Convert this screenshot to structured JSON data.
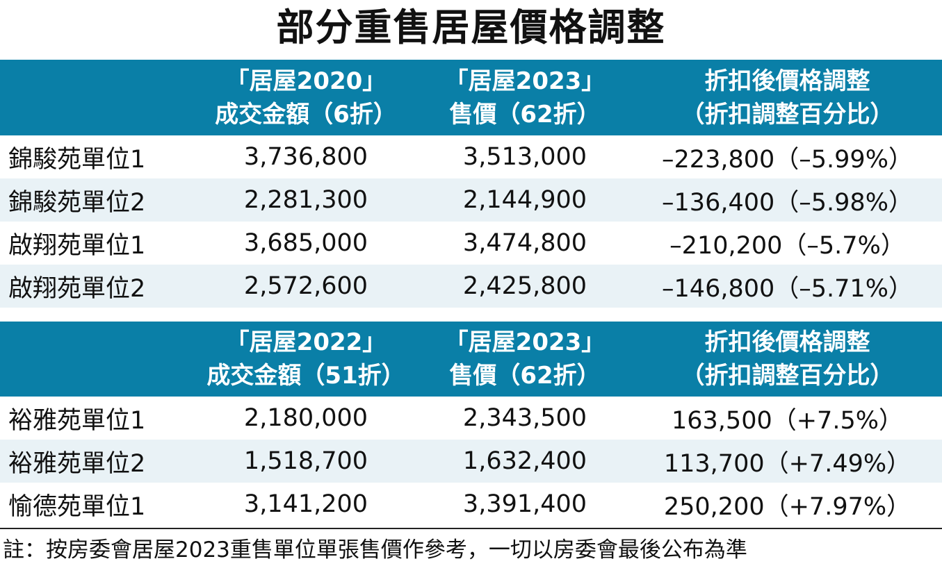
{
  "title": "部分重售居屋價格調整",
  "table1": {
    "headers": [
      {
        "line1": "",
        "line2": ""
      },
      {
        "line1": "「居屋2020」",
        "line2": "成交金額（6折）"
      },
      {
        "line1": "「居屋2023」",
        "line2": "售價（62折）"
      },
      {
        "line1": "折扣後價格調整",
        "line2": "（折扣調整百分比）"
      }
    ],
    "rows": [
      {
        "name": "錦駿苑單位1",
        "before": "3,736,800",
        "price": "3,513,000",
        "change": "–223,800（–5.99%）"
      },
      {
        "name": "錦駿苑單位2",
        "before": "2,281,300",
        "price": "2,144,900",
        "change": "–136,400（–5.98%）"
      },
      {
        "name": "啟翔苑單位1",
        "before": "3,685,000",
        "price": "3,474,800",
        "change": "–210,200（–5.7%）"
      },
      {
        "name": "啟翔苑單位2",
        "before": "2,572,600",
        "price": "2,425,800",
        "change": "–146,800（–5.71%）"
      }
    ]
  },
  "table2": {
    "headers": [
      {
        "line1": "",
        "line2": ""
      },
      {
        "line1": "「居屋2022」",
        "line2": "成交金額（51折）"
      },
      {
        "line1": "「居屋2023」",
        "line2": "售價（62折）"
      },
      {
        "line1": "折扣後價格調整",
        "line2": "（折扣調整百分比）"
      }
    ],
    "rows": [
      {
        "name": "裕雅苑單位1",
        "before": "2,180,000",
        "price": "2,343,500",
        "change": "163,500（+7.5%）"
      },
      {
        "name": "裕雅苑單位2",
        "before": "1,518,700",
        "price": "1,632,400",
        "change": "113,700（+7.49%）"
      },
      {
        "name": "愉德苑單位1",
        "before": "3,141,200",
        "price": "3,391,400",
        "change": "250,200（+7.97%）"
      }
    ]
  },
  "note": "註：按房委會居屋2023重售單位單張售價作參考，一切以房委會最後公布為準",
  "colors": {
    "header_bg": "#0a7fa7",
    "row_alt": "#e9f2f6"
  }
}
